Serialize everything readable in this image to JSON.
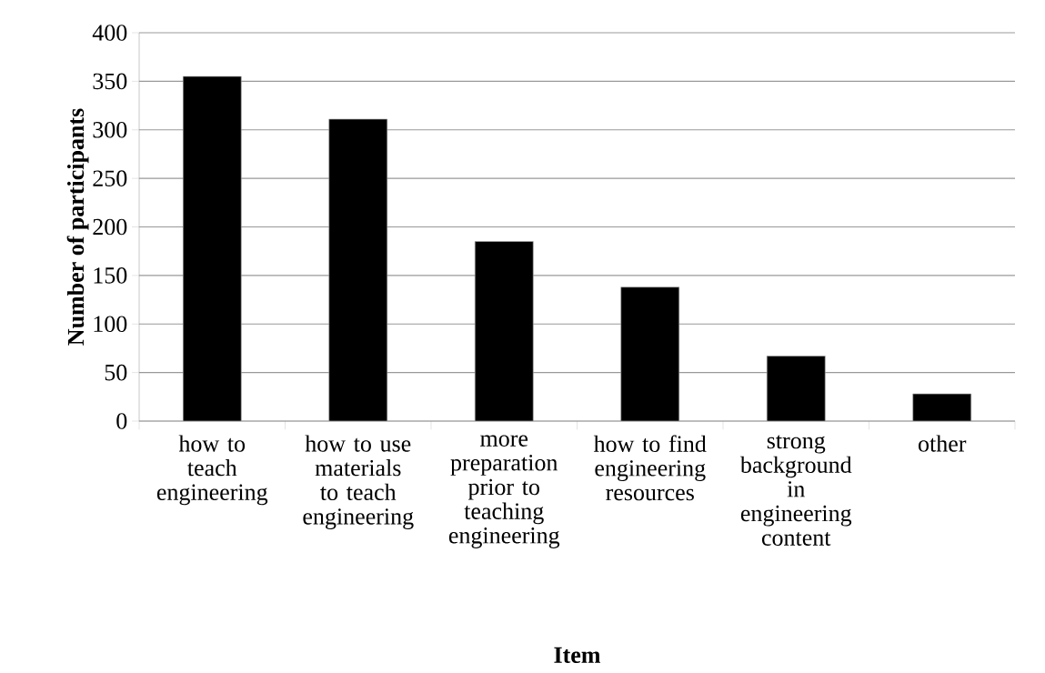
{
  "chart_data": {
    "type": "bar",
    "xlabel": "Item",
    "ylabel": "Number of participants",
    "categories": [
      "how to teach engineering",
      "how to use materials to teach engineering",
      "more preparation prior to teaching engineering",
      "how to find engineering resources",
      "strong background in engineering content",
      "other"
    ],
    "values": [
      355,
      311,
      185,
      138,
      67,
      28
    ],
    "color": "#000000",
    "ylim": [
      0,
      400
    ],
    "yticks": [
      0,
      50,
      100,
      150,
      200,
      250,
      300,
      350,
      400
    ],
    "grid": "y"
  }
}
